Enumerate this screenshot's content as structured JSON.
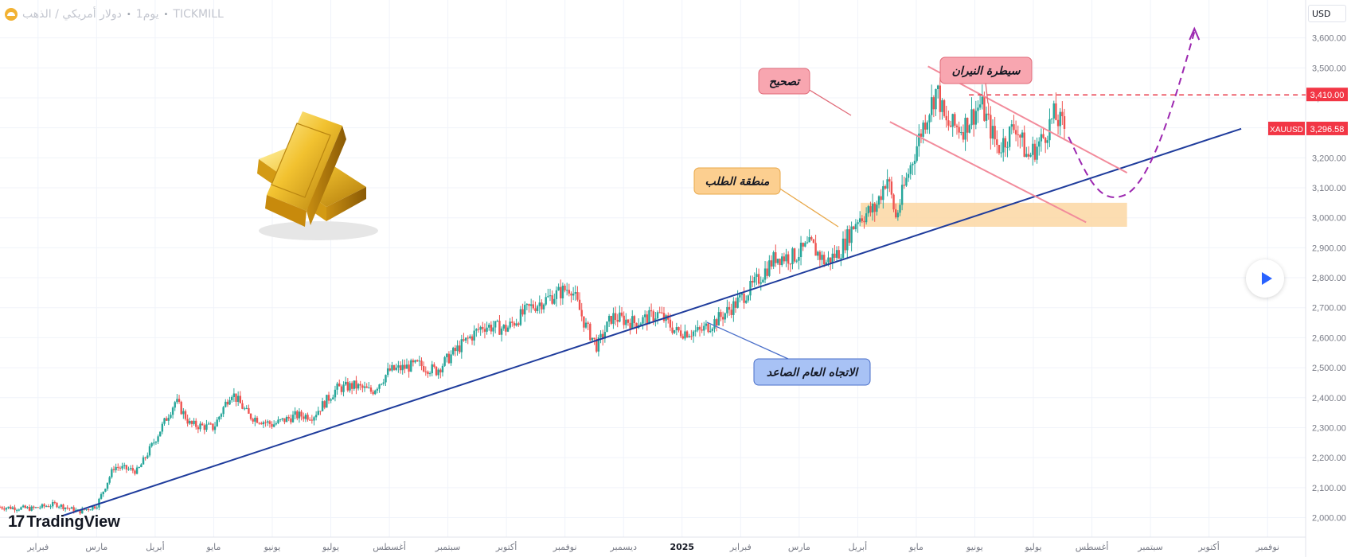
{
  "header": {
    "symbol_title": "دولار أمريكي / الذهب",
    "interval": "1يوم",
    "broker": "TICKMILL"
  },
  "currency_label": "USD",
  "branding": "TradingView",
  "colors": {
    "up": "#26a69a",
    "down": "#ef5350",
    "trendline": "#1f3c9c",
    "channel": "#f28b9b",
    "resistance": "#e8394a",
    "demand_zone": "#fbd7a3",
    "projection": "#9c27b0"
  },
  "chart_data": {
    "type": "candlestick",
    "symbol": "XAUUSD",
    "last_price": 3296.58,
    "last_price_label": "3,296.58",
    "resistance_level": 3410.0,
    "resistance_label": "3,410.00",
    "ylim": [
      1935,
      3660
    ],
    "y_ticks": [
      2000,
      2100,
      2200,
      2300,
      2400,
      2500,
      2600,
      2700,
      2800,
      2900,
      3000,
      3100,
      3200,
      3300,
      3400,
      3500,
      3600
    ],
    "y_tick_labels": [
      "2,000.00",
      "2,100.00",
      "2,200.00",
      "2,300.00",
      "2,400.00",
      "2,500.00",
      "2,600.00",
      "2,700.00",
      "2,800.00",
      "2,900.00",
      "3,000.00",
      "3,100.00",
      "3,200.00",
      "3,300.00",
      "3,400.00",
      "3,500.00",
      "3,600.00"
    ],
    "x_tick_labels": [
      "فبراير",
      "مارس",
      "أبريل",
      "مايو",
      "يونيو",
      "يوليو",
      "أغسطس",
      "سبتمبر",
      "أكتوبر",
      "نوفمبر",
      "ديسمبر",
      "2025",
      "فبراير",
      "مارس",
      "أبريل",
      "مايو",
      "يونيو",
      "يوليو",
      "أغسطس",
      "سبتمبر",
      "أكتوبر",
      "نوفمبر"
    ],
    "x_tick_months": [
      1,
      2,
      3,
      4,
      5,
      6,
      7,
      8,
      9,
      10,
      11,
      12,
      13,
      14,
      15,
      16,
      17,
      18,
      19,
      20,
      21,
      22
    ],
    "xlim_months": [
      0.35,
      22.65
    ],
    "price_path": [
      [
        0.35,
        2035
      ],
      [
        0.9,
        2030
      ],
      [
        1.3,
        2045
      ],
      [
        1.7,
        2020
      ],
      [
        2.0,
        2040
      ],
      [
        2.3,
        2170
      ],
      [
        2.7,
        2155
      ],
      [
        3.0,
        2260
      ],
      [
        3.35,
        2390
      ],
      [
        3.6,
        2310
      ],
      [
        4.0,
        2300
      ],
      [
        4.3,
        2420
      ],
      [
        4.6,
        2340
      ],
      [
        5.0,
        2310
      ],
      [
        5.4,
        2340
      ],
      [
        5.7,
        2340
      ],
      [
        6.1,
        2430
      ],
      [
        6.4,
        2440
      ],
      [
        6.7,
        2420
      ],
      [
        7.0,
        2490
      ],
      [
        7.5,
        2510
      ],
      [
        7.8,
        2490
      ],
      [
        8.2,
        2570
      ],
      [
        8.6,
        2640
      ],
      [
        9.0,
        2630
      ],
      [
        9.4,
        2700
      ],
      [
        9.8,
        2740
      ],
      [
        10.1,
        2770
      ],
      [
        10.35,
        2640
      ],
      [
        10.55,
        2570
      ],
      [
        10.8,
        2670
      ],
      [
        11.2,
        2650
      ],
      [
        11.6,
        2680
      ],
      [
        11.9,
        2620
      ],
      [
        12.3,
        2620
      ],
      [
        12.6,
        2660
      ],
      [
        12.9,
        2710
      ],
      [
        13.2,
        2770
      ],
      [
        13.6,
        2870
      ],
      [
        13.9,
        2870
      ],
      [
        14.2,
        2910
      ],
      [
        14.45,
        2850
      ],
      [
        14.7,
        2890
      ],
      [
        15.0,
        3000
      ],
      [
        15.3,
        3030
      ],
      [
        15.5,
        3140
      ],
      [
        15.65,
        3000
      ],
      [
        15.85,
        3140
      ],
      [
        16.1,
        3300
      ],
      [
        16.35,
        3430
      ],
      [
        16.5,
        3310
      ],
      [
        16.8,
        3300
      ],
      [
        17.1,
        3380
      ],
      [
        17.4,
        3230
      ],
      [
        17.7,
        3310
      ],
      [
        17.9,
        3200
      ],
      [
        18.15,
        3260
      ],
      [
        18.35,
        3340
      ],
      [
        18.55,
        3296.58
      ]
    ],
    "annotations": [
      {
        "text": "تصحيح"
      },
      {
        "text": "سيطرة النيران"
      },
      {
        "text": "منطقة الطلب"
      },
      {
        "text": "الاتجاه العام الصاعد"
      }
    ]
  }
}
